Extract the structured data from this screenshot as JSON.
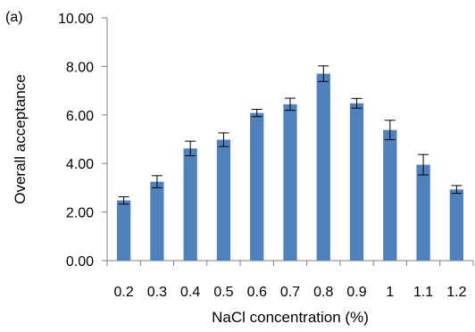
{
  "chart_data": {
    "type": "bar",
    "panel_label": "(a)",
    "categories": [
      "0.2",
      "0.3",
      "0.4",
      "0.5",
      "0.6",
      "0.7",
      "0.8",
      "0.9",
      "1",
      "1.1",
      "1.2"
    ],
    "values": [
      2.48,
      3.25,
      4.62,
      4.98,
      6.08,
      6.44,
      7.7,
      6.48,
      5.38,
      3.95,
      2.93
    ],
    "errors": [
      0.15,
      0.25,
      0.3,
      0.28,
      0.15,
      0.25,
      0.32,
      0.2,
      0.4,
      0.42,
      0.16
    ],
    "xlabel": "NaCl concentration (%)",
    "ylabel": "Overall acceptance",
    "ylim": [
      0,
      10
    ],
    "yticks": [
      "0.00",
      "2.00",
      "4.00",
      "6.00",
      "8.00",
      "10.00"
    ],
    "bar_color": "#4f81bd",
    "grid": false
  }
}
